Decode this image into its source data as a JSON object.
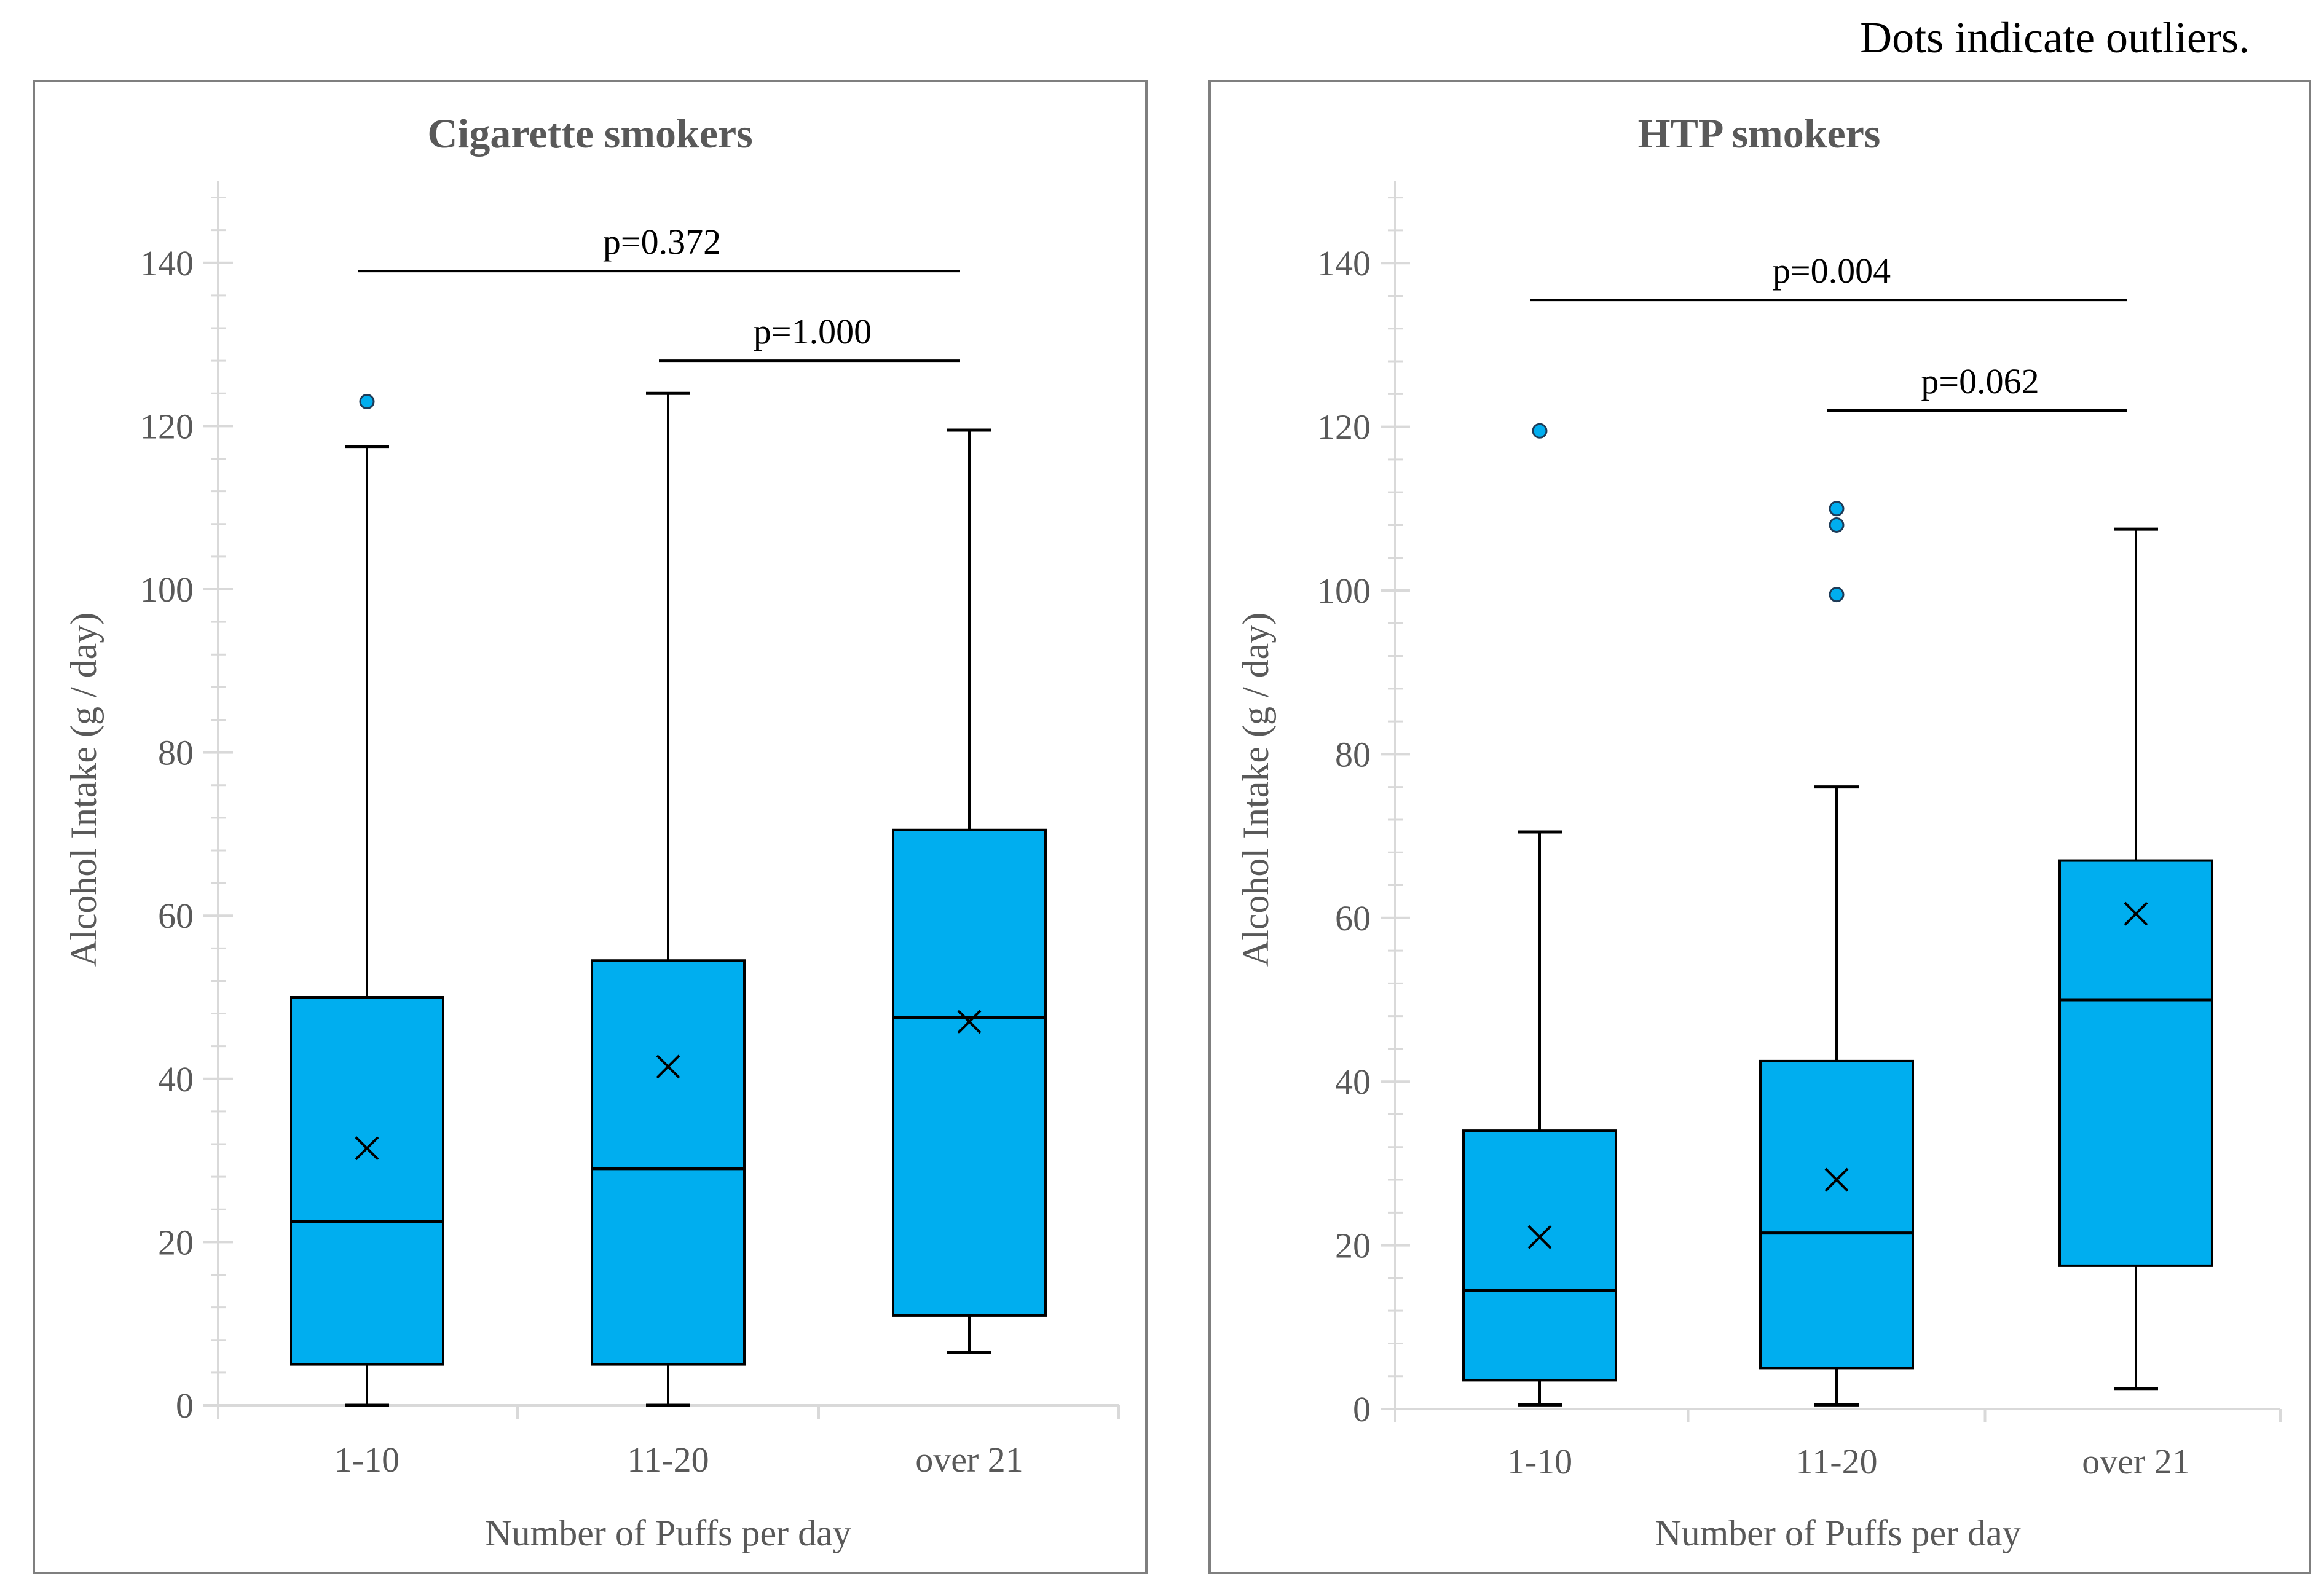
{
  "note": "Dots indicate outliers.",
  "chart_data": [
    {
      "type": "box",
      "title": "Cigarette smokers",
      "xlabel": "Number of Puffs per day",
      "ylabel": "Alcohol Intake (g / day)",
      "ylim": [
        0,
        150
      ],
      "yticks": [
        0,
        20,
        40,
        60,
        80,
        100,
        120,
        140
      ],
      "categories": [
        "1-10",
        "11-20",
        "over 21"
      ],
      "box_color": "#00AEEF",
      "boxes": [
        {
          "whisker_low": 0,
          "q1": 5,
          "median": 22.5,
          "q3": 50,
          "whisker_high": 117.5,
          "mean": 31.5,
          "outliers": [
            123
          ]
        },
        {
          "whisker_low": 0,
          "q1": 5,
          "median": 29,
          "q3": 54.5,
          "whisker_high": 124,
          "mean": 41.5,
          "outliers": []
        },
        {
          "whisker_low": 6.5,
          "q1": 11,
          "median": 47.5,
          "q3": 70.5,
          "whisker_high": 119.5,
          "mean": 47,
          "outliers": []
        }
      ],
      "comparisons": [
        {
          "from": 0,
          "to": 2,
          "y": 139,
          "label": "p=0.372"
        },
        {
          "from": 1,
          "to": 2,
          "y": 128,
          "label": "p=1.000"
        }
      ]
    },
    {
      "type": "box",
      "title": "HTP smokers",
      "xlabel": "Number of Puffs per day",
      "ylabel": "Alcohol Intake (g / day)",
      "ylim": [
        0,
        150
      ],
      "yticks": [
        0,
        20,
        40,
        60,
        80,
        100,
        120,
        140
      ],
      "categories": [
        "1-10",
        "11-20",
        "over 21"
      ],
      "box_color": "#00AEEF",
      "boxes": [
        {
          "whisker_low": 0.5,
          "q1": 3.5,
          "median": 14.5,
          "q3": 34,
          "whisker_high": 70.5,
          "mean": 21,
          "outliers": [
            119.5
          ]
        },
        {
          "whisker_low": 0.5,
          "q1": 5,
          "median": 21.5,
          "q3": 42.5,
          "whisker_high": 76,
          "mean": 28,
          "outliers": [
            110,
            108,
            99.5
          ]
        },
        {
          "whisker_low": 2.5,
          "q1": 17.5,
          "median": 50,
          "q3": 67,
          "whisker_high": 107.5,
          "mean": 60.5,
          "outliers": []
        }
      ],
      "comparisons": [
        {
          "from": 0,
          "to": 2,
          "y": 135.5,
          "label": "p=0.004"
        },
        {
          "from": 1,
          "to": 2,
          "y": 122,
          "label": "p=0.062"
        }
      ]
    }
  ]
}
